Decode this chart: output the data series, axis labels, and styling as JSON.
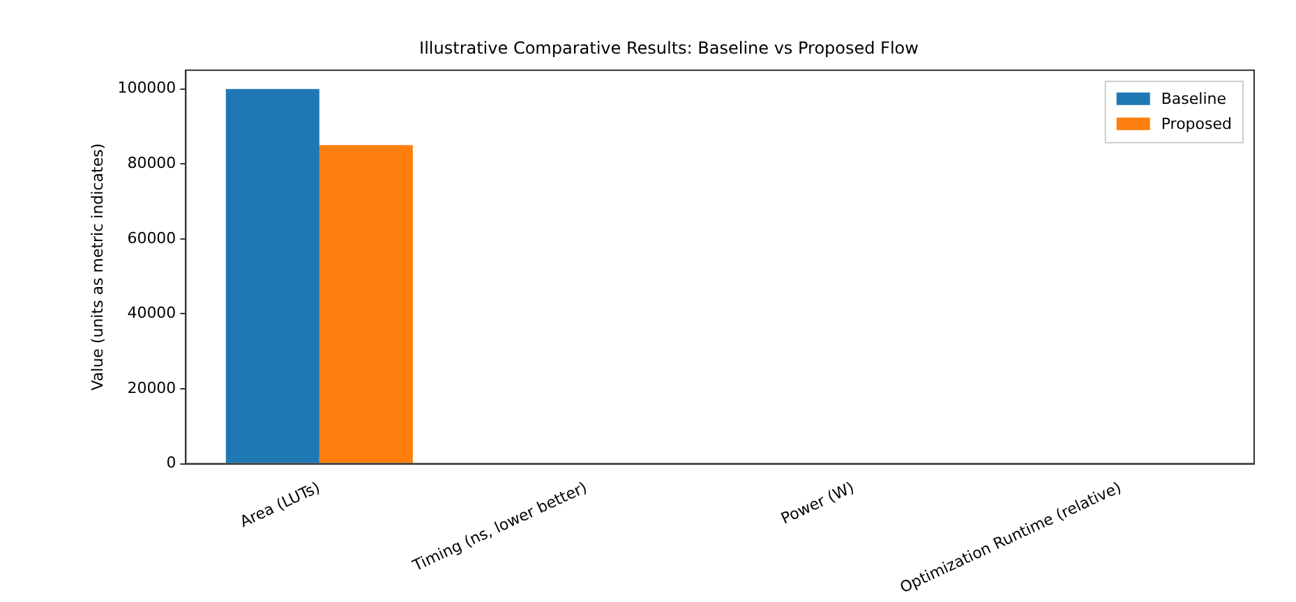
{
  "chart_data": {
    "type": "bar",
    "title": "Illustrative Comparative Results: Baseline vs Proposed Flow",
    "ylabel": "Value (units as metric indicates)",
    "categories": [
      "Area (LUTs)",
      "Timing (ns, lower better)",
      "Power (W)",
      "Optimization Runtime (relative)"
    ],
    "series": [
      {
        "name": "Baseline",
        "color": "#1f77b4",
        "values": [
          100000,
          0,
          0,
          0
        ]
      },
      {
        "name": "Proposed",
        "color": "#ff7f0e",
        "values": [
          85000,
          0,
          0,
          0
        ]
      }
    ],
    "ylim": [
      0,
      105000
    ],
    "yticks": [
      0,
      20000,
      40000,
      60000,
      80000,
      100000
    ],
    "grid": false,
    "legend": "top right"
  }
}
